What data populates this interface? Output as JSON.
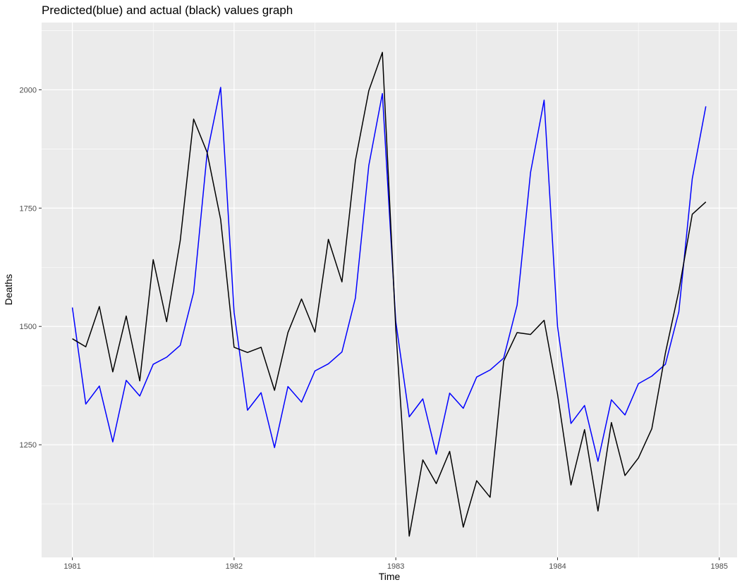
{
  "chart_data": {
    "type": "line",
    "title": "Predicted(blue) and actual (black) values graph",
    "xlabel": "Time",
    "ylabel": "Deaths",
    "xlim": [
      1980.81,
      1985.11
    ],
    "ylim": [
      1012,
      2142
    ],
    "x_ticks": [
      1981,
      1982,
      1983,
      1984,
      1985
    ],
    "y_ticks": [
      1250,
      1500,
      1750,
      2000
    ],
    "x_tick_labels": [
      "1981",
      "1982",
      "1983",
      "1984",
      "1985"
    ],
    "y_tick_labels": [
      "1250",
      "1500",
      "1750",
      "2000"
    ],
    "grid": true,
    "legend": "none",
    "x": [
      1981.0,
      1981.083,
      1981.167,
      1981.25,
      1981.333,
      1981.417,
      1981.5,
      1981.583,
      1981.667,
      1981.75,
      1981.833,
      1981.917,
      1982.0,
      1982.083,
      1982.167,
      1982.25,
      1982.333,
      1982.417,
      1982.5,
      1982.583,
      1982.667,
      1982.75,
      1982.833,
      1982.917,
      1983.0,
      1983.083,
      1983.167,
      1983.25,
      1983.333,
      1983.417,
      1983.5,
      1983.583,
      1983.667,
      1983.75,
      1983.833,
      1983.917,
      1984.0,
      1984.083,
      1984.167,
      1984.25,
      1984.333,
      1984.417,
      1984.5,
      1984.583,
      1984.667,
      1984.75,
      1984.833,
      1984.917
    ],
    "series": [
      {
        "color": "#0000ff",
        "values": [
          1540,
          1336,
          1374,
          1256,
          1386,
          1353,
          1420,
          1435,
          1460,
          1572,
          1865,
          2005,
          1530,
          1323,
          1360,
          1244,
          1373,
          1340,
          1406,
          1421,
          1446,
          1560,
          1840,
          1992,
          1510,
          1309,
          1347,
          1230,
          1359,
          1327,
          1393,
          1408,
          1433,
          1545,
          1825,
          1978,
          1500,
          1295,
          1333,
          1215,
          1345,
          1313,
          1379,
          1395,
          1420,
          1531,
          1812,
          1965
        ]
      },
      {
        "color": "#000000",
        "values": [
          1474,
          1457,
          1542,
          1404,
          1522,
          1385,
          1641,
          1510,
          1681,
          1938,
          1868,
          1726,
          1456,
          1445,
          1456,
          1365,
          1487,
          1558,
          1488,
          1684,
          1594,
          1850,
          1998,
          2079,
          1494,
          1057,
          1218,
          1168,
          1236,
          1076,
          1174,
          1139,
          1427,
          1487,
          1483,
          1513,
          1357,
          1165,
          1282,
          1110,
          1297,
          1185,
          1222,
          1284,
          1444,
          1575,
          1737,
          1763
        ]
      }
    ]
  }
}
